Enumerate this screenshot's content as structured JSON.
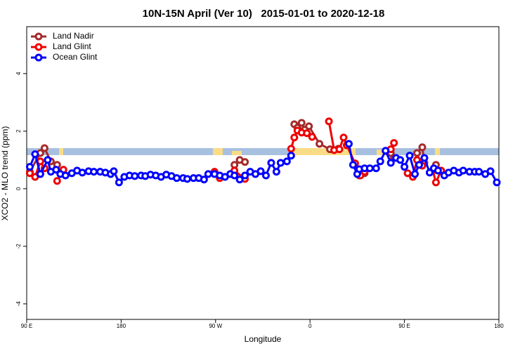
{
  "chart_data": {
    "type": "line",
    "title": "10N-15N April (Ver 10)   2015-01-01 to 2020-12-18",
    "x_label": "Longitude",
    "y_label": "XCO2 - MLO trend (ppm)",
    "xlim": [
      90,
      540
    ],
    "ylim": [
      -4.54,
      5.63
    ],
    "xticks": [
      {
        "value": 90,
        "label": "90 E"
      },
      180,
      {
        "value": 270,
        "label": "90 W"
      },
      {
        "value": 360,
        "label": "0"
      },
      {
        "value": 450,
        "label": "90 E"
      },
      {
        "value": 540,
        "label": "180"
      }
    ],
    "yticks": [
      -4,
      -2,
      0,
      2,
      4
    ],
    "legend": "top-left",
    "series": [
      {
        "name": "Land Nadir",
        "color": "#a52a2a",
        "x": [
          93,
          103,
          107,
          113,
          119,
          200,
          269,
          274,
          280,
          288,
          293,
          298,
          320,
          345,
          348,
          352,
          355,
          359,
          369,
          379,
          387,
          400,
          407,
          412,
          420,
          437,
          440,
          450,
          462,
          467,
          469,
          475,
          480
        ],
        "values": [
          0.59,
          1.24,
          1.41,
          0.95,
          0.83,
          null,
          0.56,
          0.41,
          null,
          0.83,
          1.0,
          0.93,
          null,
          2.24,
          2.12,
          2.29,
          2.05,
          2.17,
          1.56,
          1.37,
          1.39,
          null,
          0.46,
          0.54,
          null,
          1.24,
          1.07,
          null,
          1.24,
          1.44,
          0.9,
          null,
          0.83
        ]
      },
      {
        "name": "Land Glint",
        "color": "#ee0000",
        "x": [
          93,
          98,
          103,
          107,
          113,
          119,
          125,
          200,
          269,
          274,
          280,
          288,
          298,
          320,
          342,
          345,
          348,
          352,
          357,
          362,
          370,
          378,
          383,
          388,
          392,
          395,
          403,
          408,
          412,
          420,
          437,
          440,
          447,
          453,
          458,
          462,
          467,
          472,
          477,
          480,
          485
        ],
        "values": [
          0.54,
          0.41,
          0.95,
          0.71,
          null,
          0.27,
          0.66,
          null,
          0.59,
          0.37,
          null,
          0.63,
          0.34,
          null,
          1.39,
          1.78,
          2.02,
          1.95,
          1.93,
          1.8,
          null,
          2.34,
          1.34,
          1.37,
          1.78,
          1.51,
          0.88,
          0.46,
          0.59,
          null,
          1.37,
          1.59,
          null,
          0.54,
          0.41,
          1.0,
          0.8,
          null,
          0.63,
          0.22,
          0.63
        ]
      },
      {
        "name": "Ocean Glint",
        "color": "#0000ff",
        "x": [
          93,
          98,
          103,
          110,
          113,
          118,
          122,
          127,
          133,
          138,
          143,
          149,
          154,
          160,
          165,
          170,
          173,
          178,
          183,
          188,
          193,
          199,
          203,
          208,
          213,
          218,
          223,
          228,
          233,
          239,
          243,
          249,
          254,
          259,
          263,
          269,
          274,
          279,
          284,
          288,
          293,
          298,
          303,
          308,
          313,
          318,
          323,
          328,
          332,
          338,
          342,
          370,
          397,
          401,
          405,
          407,
          412,
          417,
          423,
          427,
          432,
          437,
          442,
          446,
          450,
          455,
          460,
          464,
          469,
          474,
          478,
          482,
          488,
          492,
          497,
          502,
          506,
          512,
          517,
          521,
          527,
          532,
          538
        ],
        "values": [
          0.76,
          1.2,
          0.51,
          1.0,
          0.59,
          0.66,
          0.51,
          0.46,
          0.54,
          0.63,
          0.56,
          0.61,
          0.59,
          0.59,
          0.56,
          0.51,
          0.61,
          0.22,
          0.41,
          0.46,
          0.44,
          0.46,
          0.44,
          0.49,
          0.46,
          0.41,
          0.49,
          0.44,
          0.37,
          0.37,
          0.34,
          0.37,
          0.37,
          0.32,
          0.51,
          0.51,
          0.46,
          0.41,
          0.51,
          0.46,
          0.32,
          0.46,
          0.59,
          0.51,
          0.61,
          0.46,
          0.9,
          0.59,
          0.9,
          0.95,
          1.15,
          null,
          1.56,
          0.83,
          0.51,
          0.68,
          0.71,
          0.71,
          0.71,
          0.95,
          1.32,
          0.9,
          1.07,
          1.0,
          0.76,
          1.15,
          0.51,
          0.83,
          1.07,
          0.56,
          0.71,
          0.63,
          0.46,
          0.56,
          0.63,
          0.56,
          0.63,
          0.59,
          0.59,
          0.59,
          0.51,
          0.61,
          0.22
        ]
      }
    ]
  }
}
